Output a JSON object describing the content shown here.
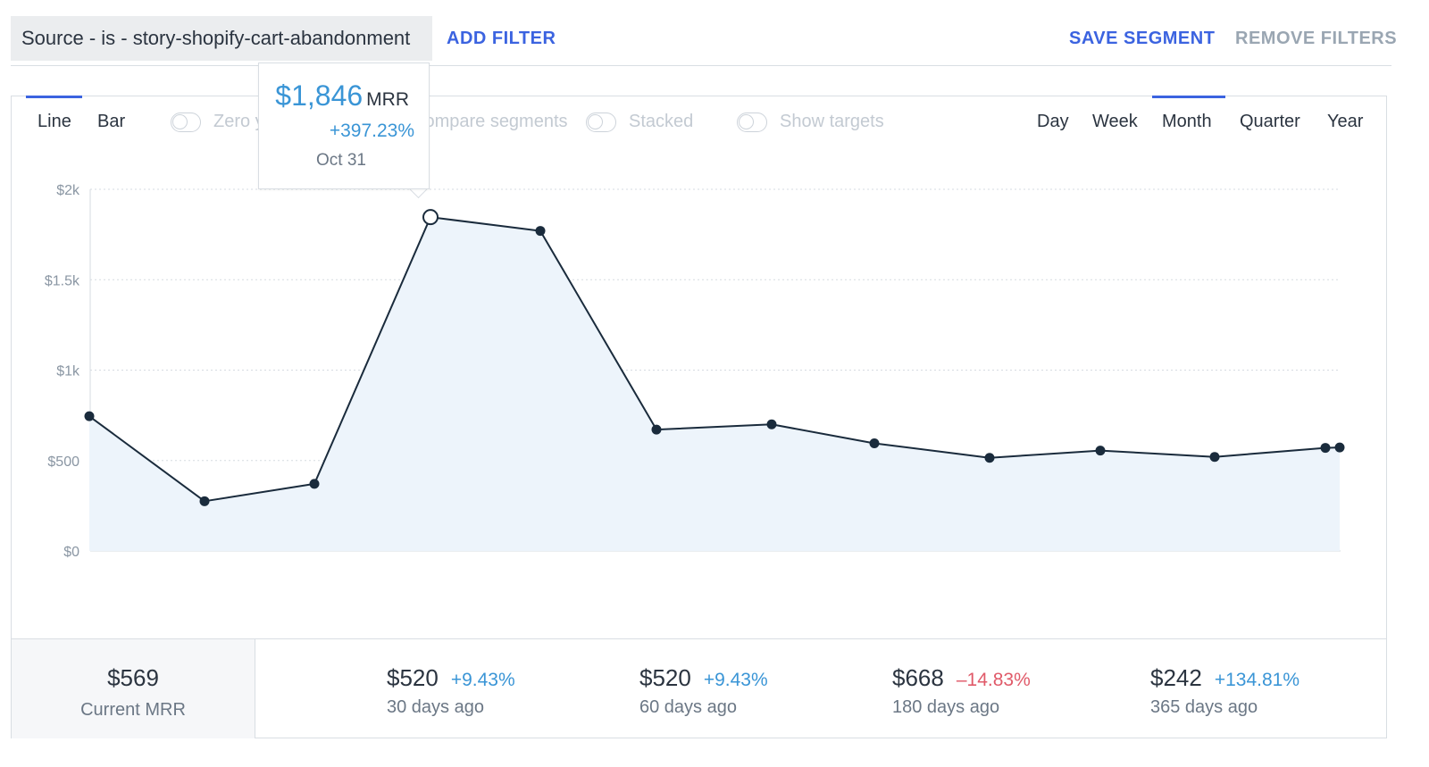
{
  "filter": {
    "chip_label": "Source - is - story-shopify-cart-abandonment",
    "add_filter": "ADD FILTER",
    "save_segment": "SAVE SEGMENT",
    "remove_filters": "REMOVE FILTERS"
  },
  "toolbar": {
    "chart_types": [
      {
        "label": "Line",
        "active": true
      },
      {
        "label": "Bar",
        "active": false
      }
    ],
    "toggles": [
      {
        "label": "Zero y-axis",
        "on": false
      },
      {
        "label": "Compare segments",
        "on": false
      },
      {
        "label": "Stacked",
        "on": false
      },
      {
        "label": "Show targets",
        "on": false
      }
    ],
    "periods": [
      {
        "label": "Day",
        "active": false
      },
      {
        "label": "Week",
        "active": false
      },
      {
        "label": "Month",
        "active": true
      },
      {
        "label": "Quarter",
        "active": false
      },
      {
        "label": "Year",
        "active": false
      }
    ]
  },
  "tooltip": {
    "value": "$1,846",
    "unit": "MRR",
    "change": "+397.23%",
    "date": "Oct 31"
  },
  "chart_data": {
    "type": "area",
    "y_tick_labels": [
      "$0",
      "$500",
      "$1k",
      "$1.5k",
      "$2k"
    ],
    "y_ticks": [
      0,
      500,
      1000,
      1500,
      2000
    ],
    "ylim": [
      0,
      2000
    ],
    "grid": true,
    "highlighted_index": 3,
    "values": [
      745,
      275,
      371,
      1846,
      1770,
      671,
      700,
      595,
      515,
      555,
      520,
      570,
      572
    ],
    "colors": {
      "line": "#1a2b3c",
      "area": "#edf4fb",
      "grid": "#d6dbe0",
      "axis_label": "#8a96a3"
    }
  },
  "stats": {
    "current": {
      "value": "$569",
      "label": "Current MRR"
    },
    "comparisons": [
      {
        "value": "$520",
        "change": "+9.43%",
        "direction": "up",
        "label": "30 days ago"
      },
      {
        "value": "$520",
        "change": "+9.43%",
        "direction": "up",
        "label": "60 days ago"
      },
      {
        "value": "$668",
        "change": "–14.83%",
        "direction": "down",
        "label": "180 days ago"
      },
      {
        "value": "$242",
        "change": "+134.81%",
        "direction": "up",
        "label": "365 days ago"
      }
    ]
  },
  "colors": {
    "accent": "#3b63e0",
    "positive": "#3a95d6",
    "negative": "#e05a69"
  }
}
